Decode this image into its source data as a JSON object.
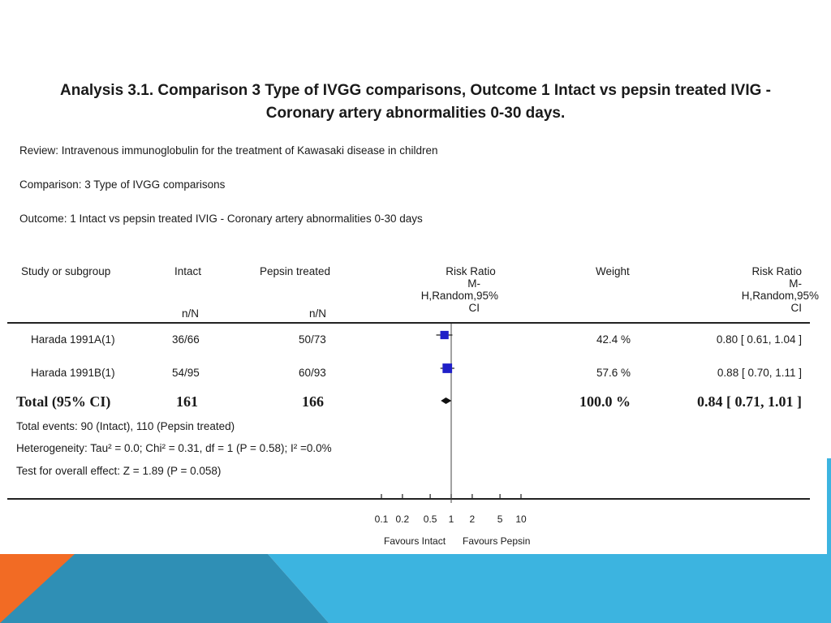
{
  "title_line1": "Analysis 3.1.   Comparison 3 Type of IVGG comparisons, Outcome 1 Intact vs pepsin treated IVIG -",
  "title_line2": "Coronary artery abnormalities 0-30 days.",
  "meta": {
    "review": "Review:   Intravenous immunoglobulin for the treatment of Kawasaki disease in children",
    "comparison": "Comparison:   3 Type of IVGG comparisons",
    "outcome": "Outcome:    1 Intact vs pepsin treated IVIG - Coronary artery abnormalities 0-30 days"
  },
  "headers": {
    "study": "Study or subgroup",
    "intact": "Intact",
    "pepsin": "Pepsin treated",
    "rr_plot_l1": "Risk Ratio",
    "rr_plot_l2": "M-",
    "rr_plot_l3": "H,Random,95%",
    "rr_plot_l4": "CI",
    "weight": "Weight",
    "rr_l1": "Risk Ratio",
    "rr_l2": "M-",
    "rr_l3": "H,Random,95%",
    "rr_l4": "CI",
    "intact_nN": "n/N",
    "pepsin_nN": "n/N"
  },
  "rows": [
    {
      "study": "Harada 1991A(1)",
      "intact": "36/66",
      "pepsin": "50/73",
      "weight": "42.4 %",
      "rr": "0.80 [ 0.61, 1.04 ]"
    },
    {
      "study": "Harada 1991B(1)",
      "intact": "54/95",
      "pepsin": "60/93",
      "weight": "57.6 %",
      "rr": "0.88 [ 0.70, 1.11 ]"
    }
  ],
  "total": {
    "label": "Total (95% CI)",
    "intact": "161",
    "pepsin": "166",
    "weight": "100.0 %",
    "rr": "0.84 [ 0.71, 1.01 ]"
  },
  "footer": {
    "events": "Total events: 90 (Intact), 110 (Pepsin treated)",
    "heterogeneity": "Heterogeneity: Tau² = 0.0; Chi² = 0.31, df = 1 (P = 0.58); I² =0.0%",
    "overall": "Test for overall effect: Z = 1.89 (P = 0.058)"
  },
  "axis": {
    "favours_left": "Favours Intact",
    "favours_right": "Favours Pepsin"
  },
  "colors": {
    "marker": "#1f1fc8",
    "slide_orange": "#f26b24",
    "slide_blue_dark": "#2f8fb5",
    "slide_blue_light": "#3cb4e0"
  },
  "chart_data": {
    "type": "forest",
    "scale": "log",
    "xlim": [
      0.1,
      10
    ],
    "x_ticks": [
      0.1,
      0.2,
      0.5,
      1,
      2,
      5,
      10
    ],
    "tick_labels": [
      "0.1",
      "0.2",
      "0.5",
      "1",
      "2",
      "5",
      "10"
    ],
    "reference_line": 1,
    "studies": [
      {
        "name": "Harada 1991A(1)",
        "rr": 0.8,
        "lower": 0.61,
        "upper": 1.04,
        "weight": 42.4
      },
      {
        "name": "Harada 1991B(1)",
        "rr": 0.88,
        "lower": 0.7,
        "upper": 1.11,
        "weight": 57.6
      }
    ],
    "pooled": {
      "rr": 0.84,
      "lower": 0.71,
      "upper": 1.01
    }
  }
}
